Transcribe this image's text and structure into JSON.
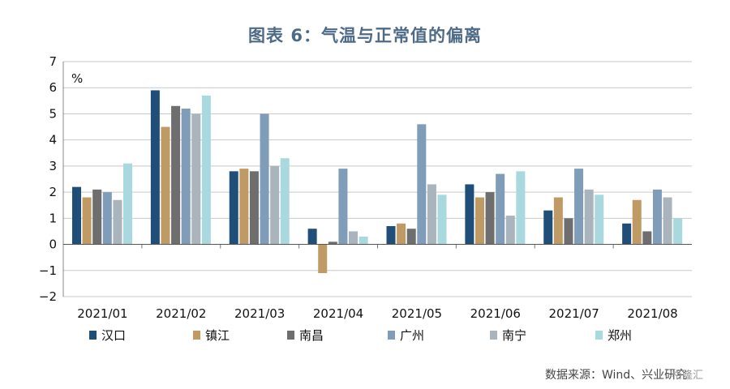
{
  "title": "图表 6：气温与正常值的偏离",
  "unit": "%",
  "source": "数据来源：Wind、兴业研究",
  "watermark": "格隆汇",
  "colors": [
    "#1f4e79",
    "#c09a65",
    "#6e6e6e",
    "#7f9cb8",
    "#a9b4bc",
    "#a9d8df"
  ],
  "chart_data": {
    "type": "bar",
    "title": "图表 6：气温与正常值的偏离",
    "ylabel": "%",
    "ylim": [
      -2,
      7
    ],
    "yticks": [
      "−2",
      "−1",
      "0",
      "1",
      "2",
      "3",
      "4",
      "5",
      "6",
      "7"
    ],
    "grid": true,
    "legend_position": "bottom",
    "categories": [
      "2021/01",
      "2021/02",
      "2021/03",
      "2021/04",
      "2021/05",
      "2021/06",
      "2021/07",
      "2021/08"
    ],
    "series": [
      {
        "name": "汉口",
        "values": [
          2.2,
          5.9,
          2.8,
          0.6,
          0.7,
          2.3,
          1.3,
          0.8
        ]
      },
      {
        "name": "镇江",
        "values": [
          1.8,
          4.5,
          2.9,
          -1.1,
          0.8,
          1.8,
          1.8,
          1.7
        ]
      },
      {
        "name": "南昌",
        "values": [
          2.1,
          5.3,
          2.8,
          0.1,
          0.6,
          2.0,
          1.0,
          0.5
        ]
      },
      {
        "name": "广州",
        "values": [
          2.0,
          5.2,
          5.0,
          2.9,
          4.6,
          2.7,
          2.9,
          2.1
        ]
      },
      {
        "name": "南宁",
        "values": [
          1.7,
          5.0,
          3.0,
          0.5,
          2.3,
          1.1,
          2.1,
          1.8
        ]
      },
      {
        "name": "郑州",
        "values": [
          3.1,
          5.7,
          3.3,
          0.3,
          1.9,
          2.8,
          1.9,
          1.0
        ]
      }
    ]
  }
}
